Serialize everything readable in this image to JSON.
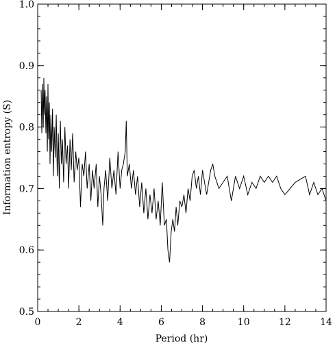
{
  "chart_data": {
    "type": "line",
    "xlabel": "Period (hr)",
    "ylabel": "Information entropy (S)",
    "xlim": [
      0,
      14
    ],
    "ylim": [
      0.5,
      1.0
    ],
    "xticks": [
      0,
      2,
      4,
      6,
      8,
      10,
      12,
      14
    ],
    "xtick_labels": [
      "0",
      "2",
      "4",
      "6",
      "8",
      "10",
      "12",
      "14"
    ],
    "yticks": [
      0.5,
      0.6,
      0.7,
      0.8,
      0.9,
      1.0
    ],
    "ytick_labels": [
      "0.5",
      "0.6",
      "0.7",
      "0.8",
      "0.9",
      "1.0"
    ],
    "grid": false,
    "line_color": "#000000",
    "series": [
      {
        "x": [
          0.17,
          0.2,
          0.24,
          0.27,
          0.3,
          0.33,
          0.36,
          0.4,
          0.43,
          0.47,
          0.5,
          0.53,
          0.57,
          0.6,
          0.64,
          0.68,
          0.72,
          0.76,
          0.8,
          0.85,
          0.9,
          0.95,
          1.0,
          1.05,
          1.1,
          1.15,
          1.2,
          1.26,
          1.32,
          1.38,
          1.45,
          1.5,
          1.57,
          1.63,
          1.7,
          1.77,
          1.85,
          1.92,
          2.0,
          2.08,
          2.16,
          2.24,
          2.32,
          2.4,
          2.5,
          2.58,
          2.66,
          2.74,
          2.84,
          2.92,
          3.0,
          3.08,
          3.16,
          3.22,
          3.3,
          3.4,
          3.5,
          3.6,
          3.7,
          3.8,
          3.9,
          4.0,
          4.08,
          4.16,
          4.25,
          4.3,
          4.35,
          4.45,
          4.55,
          4.65,
          4.75,
          4.85,
          4.95,
          5.05,
          5.15,
          5.25,
          5.35,
          5.45,
          5.55,
          5.65,
          5.75,
          5.85,
          5.95,
          6.05,
          6.15,
          6.25,
          6.32,
          6.4,
          6.48,
          6.56,
          6.64,
          6.72,
          6.8,
          6.9,
          7.0,
          7.1,
          7.2,
          7.3,
          7.4,
          7.5,
          7.6,
          7.7,
          7.8,
          7.9,
          8.0,
          8.2,
          8.4,
          8.5,
          8.6,
          8.8,
          9.0,
          9.2,
          9.4,
          9.6,
          9.8,
          10.0,
          10.2,
          10.4,
          10.6,
          10.8,
          11.0,
          11.2,
          11.4,
          11.6,
          11.8,
          12.0,
          12.5,
          13.0,
          13.2,
          13.4,
          13.6,
          13.8,
          14.0
        ],
        "y": [
          0.86,
          0.79,
          0.87,
          0.8,
          0.88,
          0.82,
          0.86,
          0.79,
          0.85,
          0.76,
          0.87,
          0.78,
          0.84,
          0.74,
          0.82,
          0.76,
          0.83,
          0.72,
          0.8,
          0.75,
          0.82,
          0.72,
          0.79,
          0.7,
          0.81,
          0.74,
          0.78,
          0.71,
          0.8,
          0.74,
          0.77,
          0.7,
          0.78,
          0.73,
          0.79,
          0.71,
          0.76,
          0.73,
          0.75,
          0.67,
          0.74,
          0.72,
          0.76,
          0.7,
          0.74,
          0.68,
          0.73,
          0.7,
          0.74,
          0.67,
          0.72,
          0.69,
          0.64,
          0.7,
          0.73,
          0.68,
          0.75,
          0.7,
          0.73,
          0.69,
          0.76,
          0.7,
          0.73,
          0.74,
          0.76,
          0.81,
          0.72,
          0.74,
          0.7,
          0.73,
          0.69,
          0.72,
          0.67,
          0.71,
          0.66,
          0.7,
          0.65,
          0.69,
          0.66,
          0.7,
          0.65,
          0.68,
          0.64,
          0.71,
          0.64,
          0.65,
          0.6,
          0.58,
          0.63,
          0.65,
          0.63,
          0.67,
          0.64,
          0.68,
          0.67,
          0.69,
          0.66,
          0.7,
          0.68,
          0.72,
          0.73,
          0.7,
          0.72,
          0.69,
          0.73,
          0.69,
          0.73,
          0.74,
          0.72,
          0.7,
          0.71,
          0.72,
          0.68,
          0.72,
          0.7,
          0.72,
          0.69,
          0.71,
          0.7,
          0.72,
          0.71,
          0.72,
          0.71,
          0.72,
          0.7,
          0.69,
          0.71,
          0.72,
          0.69,
          0.71,
          0.69,
          0.7,
          0.68
        ]
      }
    ]
  }
}
